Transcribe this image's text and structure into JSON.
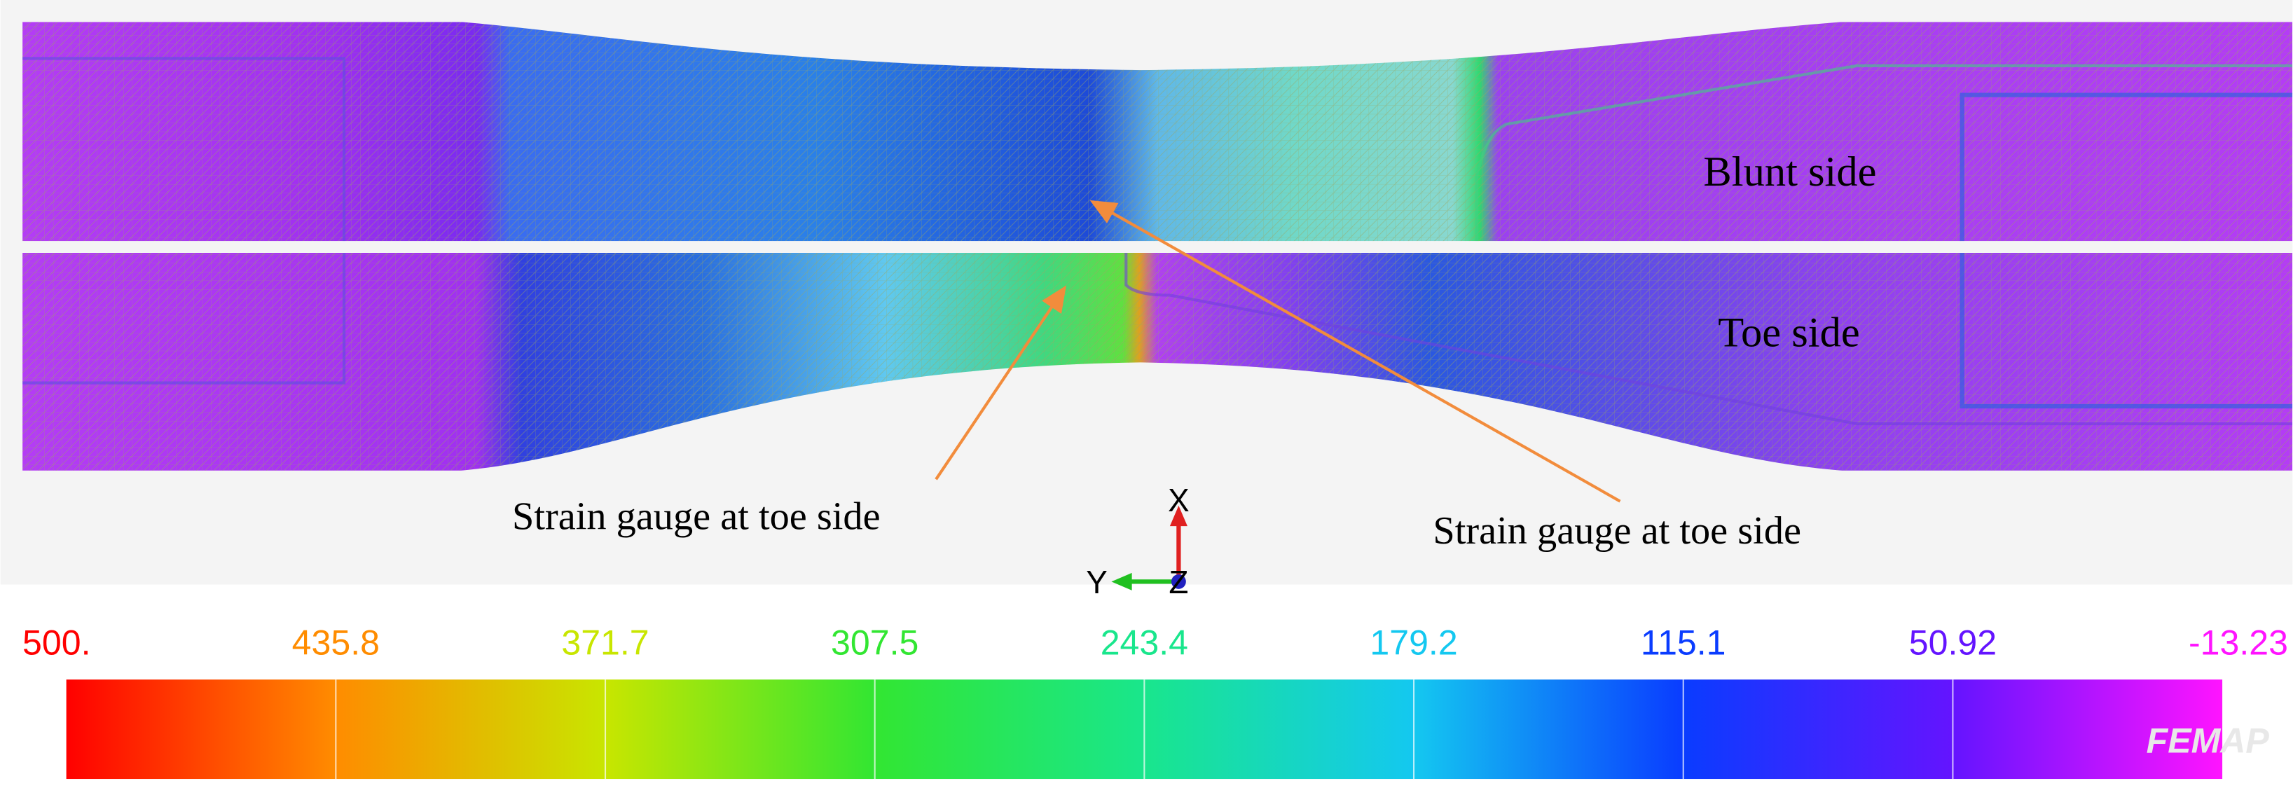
{
  "specimen": {
    "labels": [
      "Blunt side",
      "Toe side"
    ]
  },
  "annotations": [
    "Strain gauge at toe side",
    "Strain gauge at toe side"
  ],
  "triad": {
    "x": "X",
    "y": "Y",
    "z": "Z"
  },
  "legend": {
    "entries": [
      {
        "label": "500.",
        "color": "#ff0000"
      },
      {
        "label": "435.8",
        "color": "#ff8c00"
      },
      {
        "label": "371.7",
        "color": "#c8e600"
      },
      {
        "label": "307.5",
        "color": "#32e632"
      },
      {
        "label": "243.4",
        "color": "#19e68c"
      },
      {
        "label": "179.2",
        "color": "#14c8f0"
      },
      {
        "label": "115.1",
        "color": "#0a3cff"
      },
      {
        "label": "50.92",
        "color": "#6414ff"
      },
      {
        "label": "-13.23",
        "color": "#ff14ff"
      }
    ],
    "watermark": "FEMAP"
  }
}
